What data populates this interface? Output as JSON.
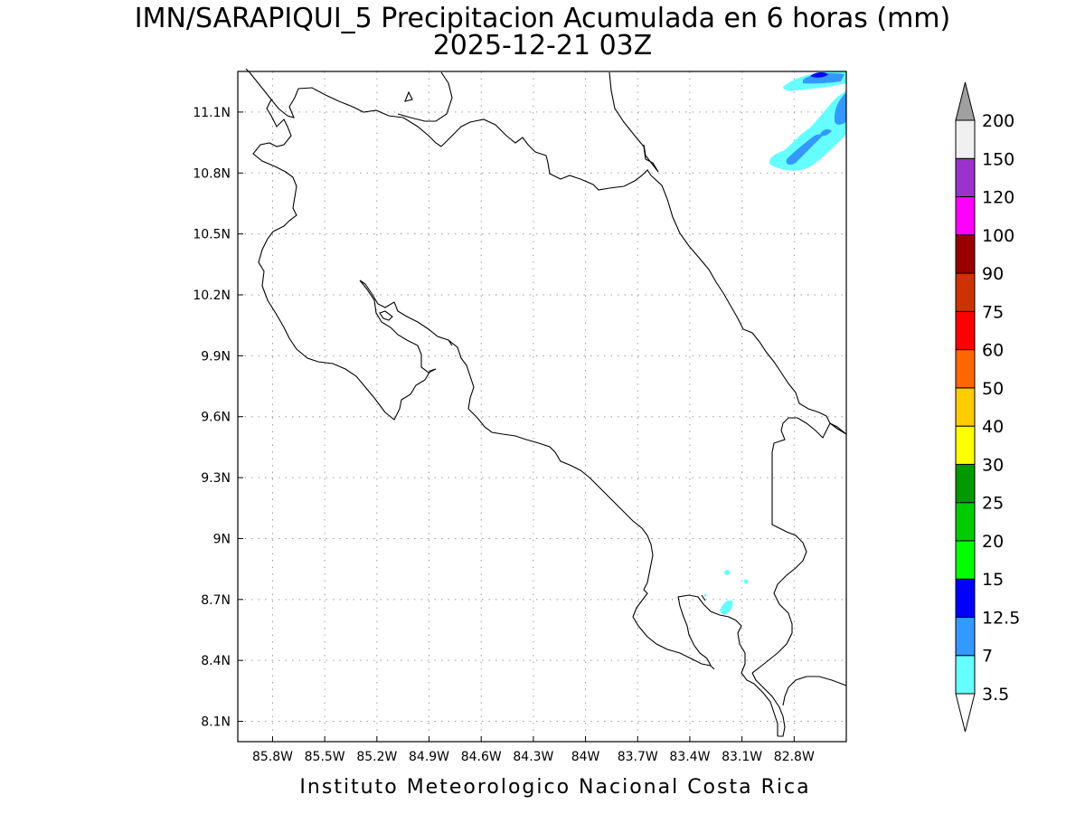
{
  "title": {
    "line1": "IMN/SARAPIQUI_5 Precipitacion Acumulada en 6 horas (mm)",
    "line2": "2025-12-21 03Z"
  },
  "credit": "Instituto Meteorologico Nacional Costa Rica",
  "map": {
    "lon_range": [
      -86.0,
      -82.5
    ],
    "lat_range": [
      8.0,
      11.3
    ],
    "lon_ticks": [
      "85.8W",
      "85.5W",
      "85.2W",
      "84.9W",
      "84.6W",
      "84.3W",
      "84W",
      "83.7W",
      "83.4W",
      "83.1W",
      "82.8W"
    ],
    "lat_ticks": [
      "11.1N",
      "10.8N",
      "10.5N",
      "10.2N",
      "9.9N",
      "9.6N",
      "9.3N",
      "9N",
      "8.7N",
      "8.4N",
      "8.1N"
    ]
  },
  "colorbar": {
    "levels": [
      {
        "label": "3.5",
        "color": "#66ffff"
      },
      {
        "label": "7",
        "color": "#3399ff"
      },
      {
        "label": "12.5",
        "color": "#0000ff"
      },
      {
        "label": "15",
        "color": "#00ff00"
      },
      {
        "label": "20",
        "color": "#00cc00"
      },
      {
        "label": "25",
        "color": "#009900"
      },
      {
        "label": "30",
        "color": "#ffff00"
      },
      {
        "label": "40",
        "color": "#ffcc00"
      },
      {
        "label": "50",
        "color": "#ff6600"
      },
      {
        "label": "60",
        "color": "#ff0000"
      },
      {
        "label": "75",
        "color": "#cc3300"
      },
      {
        "label": "90",
        "color": "#990000"
      },
      {
        "label": "100",
        "color": "#ff00ff"
      },
      {
        "label": "120",
        "color": "#9933cc"
      },
      {
        "label": "150",
        "color": "#f0f0f0"
      },
      {
        "label": "200",
        "color": "#a0a0a0"
      }
    ],
    "below_color": "#ffffff"
  }
}
